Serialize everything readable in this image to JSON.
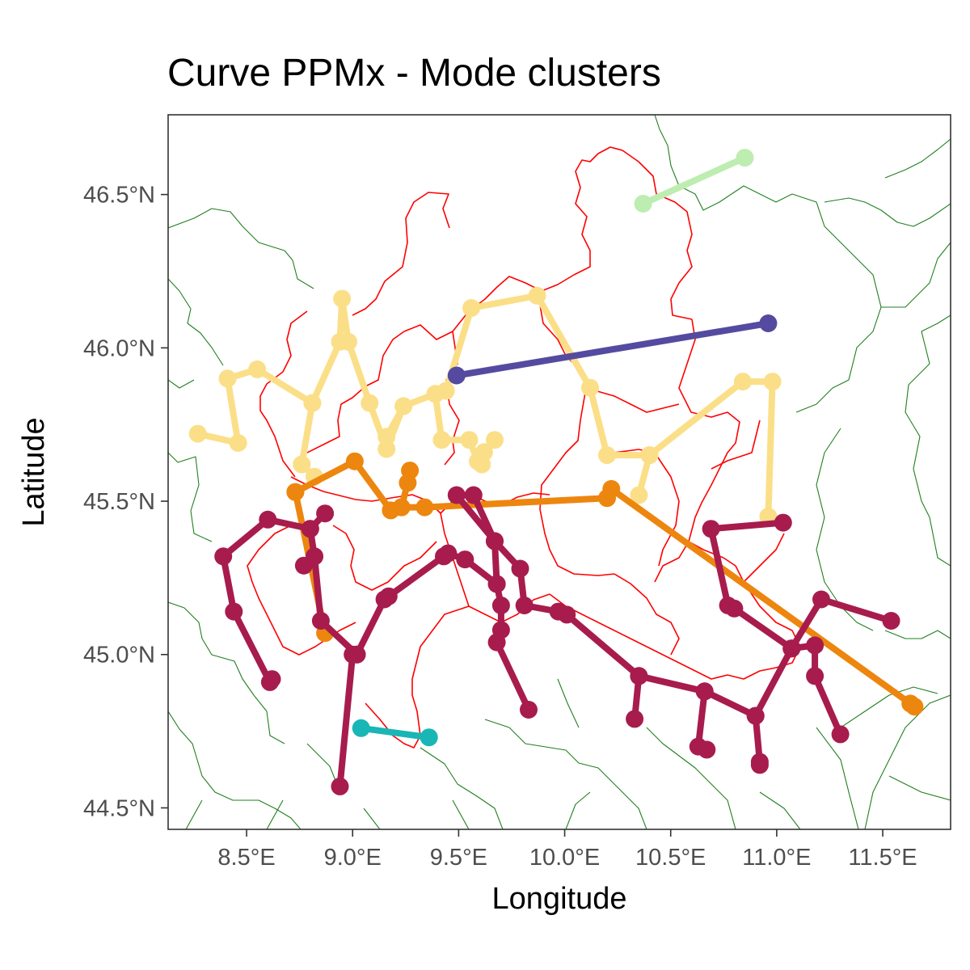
{
  "chart_data": {
    "type": "map",
    "title": "Curve PPMx - Mode clusters",
    "xlabel": "Longitude",
    "ylabel": "Latitude",
    "xlim": [
      8.13,
      11.82
    ],
    "ylim": [
      44.43,
      46.76
    ],
    "x_ticks": [
      {
        "value": 8.5,
        "label": "8.5°E"
      },
      {
        "value": 9.0,
        "label": "9.0°E"
      },
      {
        "value": 9.5,
        "label": "9.5°E"
      },
      {
        "value": 10.0,
        "label": "10.0°E"
      },
      {
        "value": 10.5,
        "label": "10.5°E"
      },
      {
        "value": 11.0,
        "label": "11.0°E"
      },
      {
        "value": 11.5,
        "label": "11.5°E"
      }
    ],
    "y_ticks": [
      {
        "value": 44.5,
        "label": "44.5°N"
      },
      {
        "value": 45.0,
        "label": "45.0°N"
      },
      {
        "value": 45.5,
        "label": "45.5°N"
      },
      {
        "value": 46.0,
        "label": "46.0°N"
      },
      {
        "value": 46.5,
        "label": "46.5°N"
      }
    ],
    "grid": false,
    "legend": "none",
    "clusters": [
      {
        "color": "#bdedb0",
        "lines": [
          [
            [
              10.37,
              46.47
            ],
            [
              10.85,
              46.62
            ]
          ]
        ]
      },
      {
        "color": "#fbdf88",
        "lines": [
          [
            [
              8.27,
              45.72
            ],
            [
              8.46,
              45.69
            ],
            [
              8.41,
              45.9
            ],
            [
              8.55,
              45.93
            ],
            [
              8.81,
              45.82
            ],
            [
              8.94,
              46.02
            ],
            [
              8.95,
              46.16
            ],
            [
              8.98,
              46.02
            ],
            [
              9.08,
              45.82
            ],
            [
              9.16,
              45.67
            ],
            [
              9.24,
              45.81
            ],
            [
              9.39,
              45.85
            ],
            [
              9.42,
              45.7
            ],
            [
              9.55,
              45.7
            ],
            [
              9.59,
              45.63
            ],
            [
              9.61,
              45.62
            ],
            [
              9.62,
              45.66
            ],
            [
              9.67,
              45.7
            ]
          ],
          [
            [
              9.16,
              45.71
            ],
            [
              9.24,
              45.81
            ]
          ],
          [
            [
              8.76,
              45.62
            ],
            [
              8.81,
              45.82
            ]
          ],
          [
            [
              8.76,
              45.62
            ],
            [
              8.82,
              45.58
            ]
          ],
          [
            [
              9.39,
              45.85
            ],
            [
              9.44,
              45.86
            ],
            [
              9.56,
              46.13
            ],
            [
              9.87,
              46.17
            ],
            [
              10.12,
              45.87
            ],
            [
              10.2,
              45.65
            ],
            [
              10.4,
              45.65
            ],
            [
              10.35,
              45.52
            ]
          ],
          [
            [
              10.4,
              45.65
            ],
            [
              10.84,
              45.89
            ],
            [
              10.98,
              45.89
            ],
            [
              10.96,
              45.45
            ]
          ]
        ]
      },
      {
        "color": "#544ba0",
        "lines": [
          [
            [
              9.49,
              45.91
            ],
            [
              10.96,
              46.08
            ]
          ]
        ]
      },
      {
        "color": "#ed860e",
        "lines": [
          [
            [
              8.73,
              45.53
            ],
            [
              9.01,
              45.63
            ],
            [
              9.18,
              45.47
            ],
            [
              9.23,
              45.48
            ],
            [
              9.26,
              45.56
            ],
            [
              9.27,
              45.6
            ]
          ],
          [
            [
              8.73,
              45.53
            ],
            [
              8.87,
              45.07
            ]
          ],
          [
            [
              9.23,
              45.48
            ],
            [
              9.34,
              45.48
            ],
            [
              10.2,
              45.51
            ],
            [
              10.22,
              45.54
            ],
            [
              11.63,
              44.84
            ],
            [
              11.65,
              44.83
            ]
          ]
        ]
      },
      {
        "color": "#19b6b6",
        "lines": [
          [
            [
              9.04,
              44.76
            ],
            [
              9.36,
              44.73
            ]
          ]
        ]
      },
      {
        "color": "#a71c4d",
        "lines": [
          [
            [
              8.62,
              44.92
            ],
            [
              8.61,
              44.91
            ],
            [
              8.44,
              45.14
            ],
            [
              8.39,
              45.32
            ],
            [
              8.6,
              45.44
            ],
            [
              8.8,
              45.41
            ],
            [
              8.87,
              45.46
            ]
          ],
          [
            [
              8.8,
              45.41
            ],
            [
              8.82,
              45.32
            ],
            [
              8.77,
              45.29
            ]
          ],
          [
            [
              8.82,
              45.32
            ],
            [
              8.85,
              45.11
            ],
            [
              9.02,
              45.0
            ],
            [
              9.0,
              45.0
            ],
            [
              8.94,
              44.57
            ]
          ],
          [
            [
              9.02,
              45.0
            ],
            [
              9.15,
              45.18
            ],
            [
              9.17,
              45.19
            ],
            [
              9.43,
              45.32
            ],
            [
              9.45,
              45.33
            ],
            [
              9.53,
              45.31
            ],
            [
              9.68,
              45.23
            ],
            [
              9.7,
              45.16
            ],
            [
              9.7,
              45.08
            ],
            [
              9.68,
              45.04
            ],
            [
              9.83,
              44.82
            ]
          ],
          [
            [
              9.68,
              45.23
            ],
            [
              9.67,
              45.37
            ],
            [
              9.49,
              45.52
            ],
            [
              9.57,
              45.52
            ],
            [
              9.67,
              45.37
            ],
            [
              9.79,
              45.28
            ],
            [
              9.81,
              45.16
            ],
            [
              9.97,
              45.14
            ],
            [
              10.01,
              45.13
            ],
            [
              10.35,
              44.93
            ],
            [
              10.66,
              44.88
            ],
            [
              10.9,
              44.8
            ],
            [
              10.92,
              44.65
            ],
            [
              10.92,
              44.64
            ]
          ],
          [
            [
              10.35,
              44.93
            ],
            [
              10.33,
              44.79
            ]
          ],
          [
            [
              10.66,
              44.88
            ],
            [
              10.63,
              44.7
            ],
            [
              10.67,
              44.69
            ]
          ],
          [
            [
              10.9,
              44.8
            ],
            [
              11.07,
              45.02
            ],
            [
              11.21,
              45.18
            ],
            [
              11.54,
              45.11
            ]
          ],
          [
            [
              11.07,
              45.02
            ],
            [
              11.18,
              45.03
            ],
            [
              11.18,
              44.93
            ],
            [
              11.3,
              44.74
            ]
          ],
          [
            [
              11.07,
              45.02
            ],
            [
              10.8,
              45.15
            ],
            [
              10.77,
              45.16
            ],
            [
              10.69,
              45.41
            ],
            [
              11.03,
              45.43
            ]
          ]
        ]
      }
    ]
  },
  "map_layers": {
    "outer_boundary_color": "#217f1f",
    "region_boundary_color": "#ff0000"
  }
}
